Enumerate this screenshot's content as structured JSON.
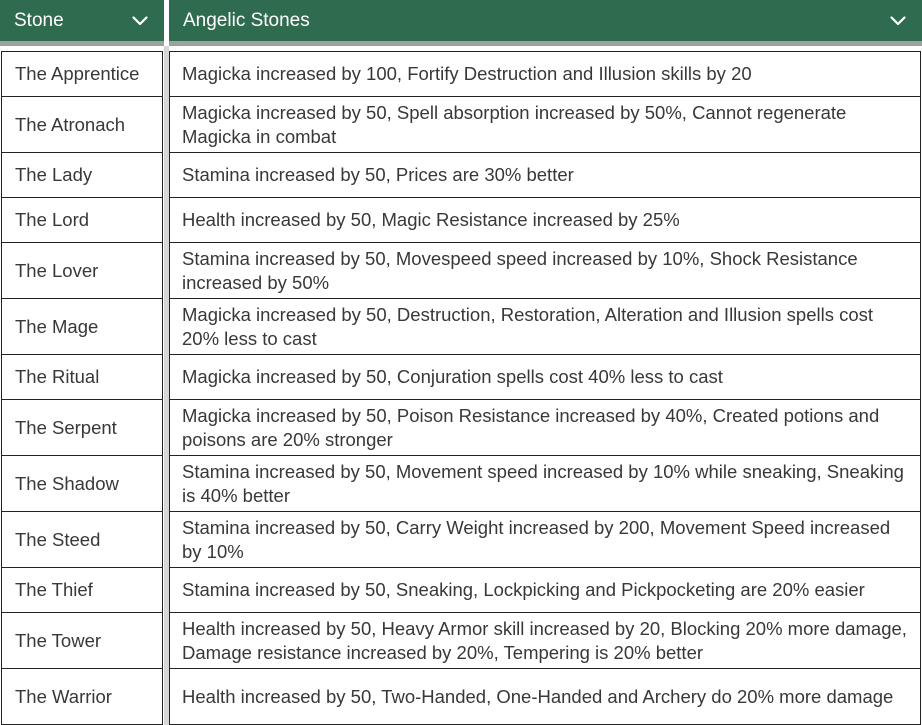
{
  "columns": {
    "stone": "Stone",
    "effect": "Angelic Stones"
  },
  "icons": {
    "sort": "chevron-down-icon"
  },
  "colors": {
    "header_bg": "#2e6b4f",
    "header_text": "#ffffff",
    "border": "#222222"
  },
  "rows": [
    {
      "stone": "The Apprentice",
      "effect": "Magicka increased by 100, Fortify Destruction and Illusion skills by 20"
    },
    {
      "stone": "The Atronach",
      "effect": "Magicka increased by 50, Spell absorption increased by 50%, Cannot regenerate Magicka in combat"
    },
    {
      "stone": "The Lady",
      "effect": "Stamina increased by 50, Prices are 30% better"
    },
    {
      "stone": "The Lord",
      "effect": "Health increased by 50, Magic Resistance increased by 25%"
    },
    {
      "stone": "The Lover",
      "effect": "Stamina increased by 50, Movespeed speed increased by 10%, Shock Resistance increased by 50%"
    },
    {
      "stone": "The Mage",
      "effect": "Magicka increased by 50, Destruction, Restoration, Alteration and Illusion spells cost 20% less to cast"
    },
    {
      "stone": "The Ritual",
      "effect": "Magicka increased by 50, Conjuration spells cost 40% less to cast"
    },
    {
      "stone": "The Serpent",
      "effect": "Magicka increased by 50, Poison Resistance increased by 40%, Created potions and poisons are 20% stronger"
    },
    {
      "stone": "The Shadow",
      "effect": "Stamina increased by 50, Movement speed increased by 10% while sneaking, Sneaking is 40% better"
    },
    {
      "stone": "The Steed",
      "effect": "Stamina increased by 50, Carry Weight increased by 200, Movement Speed increased by 10%"
    },
    {
      "stone": "The Thief",
      "effect": "Stamina increased by 50, Sneaking, Lockpicking and Pickpocketing are 20% easier"
    },
    {
      "stone": "The Tower",
      "effect": "Health increased by 50, Heavy Armor skill increased by 20, Blocking 20% more damage, Damage resistance increased by 20%, Tempering is 20% better"
    },
    {
      "stone": "The Warrior",
      "effect": "Health increased by 50, Two-Handed, One-Handed and Archery do 20% more damage"
    }
  ]
}
